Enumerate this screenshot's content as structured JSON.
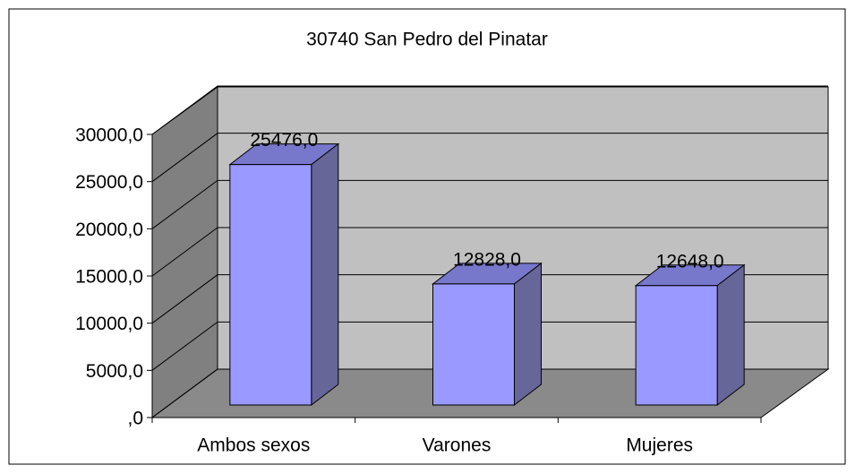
{
  "chart_data": {
    "type": "bar3d",
    "title": "30740 San Pedro del Pinatar",
    "categories": [
      "Ambos sexos",
      "Varones",
      "Mujeres"
    ],
    "values": [
      25476,
      12828,
      12648
    ],
    "value_labels": [
      "25476,0",
      "12828,0",
      "12648,0"
    ],
    "color": "#9999ff",
    "ylim": [
      0,
      30000
    ],
    "yticks": [
      {
        "value": 0,
        "label": ",0"
      },
      {
        "value": 5000,
        "label": "5000,0"
      },
      {
        "value": 10000,
        "label": "10000,0"
      },
      {
        "value": 15000,
        "label": "15000,0"
      },
      {
        "value": 20000,
        "label": "20000,0"
      },
      {
        "value": 25000,
        "label": "25000,0"
      },
      {
        "value": 30000,
        "label": "30000,0"
      }
    ],
    "grid": true
  }
}
